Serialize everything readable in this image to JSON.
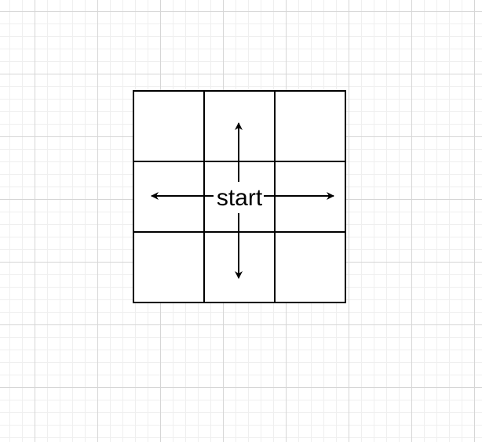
{
  "diagram": {
    "center_label": "start",
    "grid": {
      "rows": 3,
      "cols": 3
    },
    "arrows": [
      "up",
      "down",
      "left",
      "right"
    ],
    "colors": {
      "stroke": "#000000",
      "page_grid": "#d6d6d6",
      "background": "#ffffff"
    }
  }
}
